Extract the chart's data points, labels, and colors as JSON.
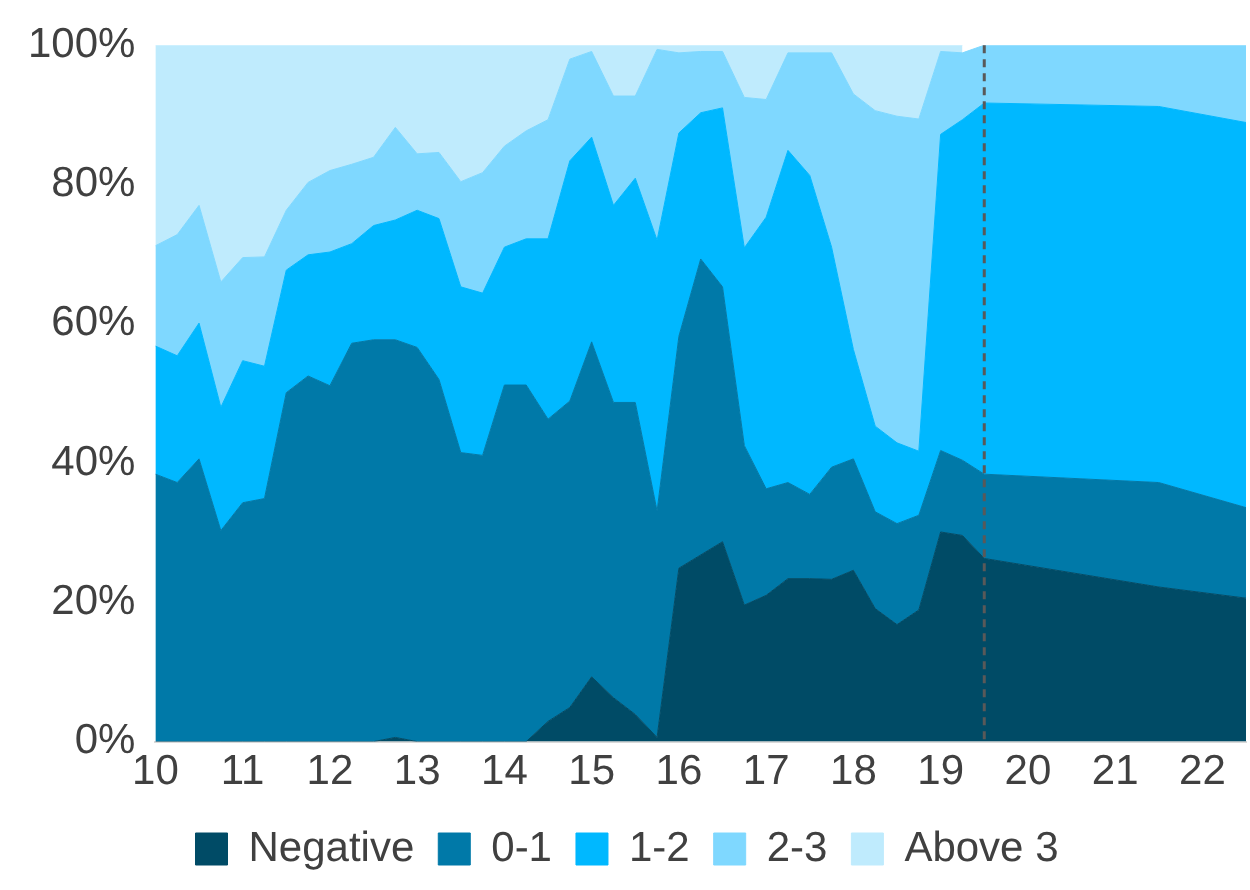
{
  "chart_data": {
    "type": "area",
    "stacked": true,
    "x": [
      10,
      10.25,
      10.5,
      10.75,
      11,
      11.25,
      11.5,
      11.75,
      12,
      12.25,
      12.5,
      12.75,
      13,
      13.25,
      13.5,
      13.75,
      14,
      14.25,
      14.5,
      14.75,
      15,
      15.25,
      15.5,
      15.75,
      16,
      16.25,
      16.5,
      16.75,
      17,
      17.25,
      17.5,
      17.75,
      18,
      18.25,
      18.5,
      18.75,
      19,
      19.25,
      19.5,
      21.5,
      22.5
    ],
    "series": [
      {
        "name": "Negative",
        "color": "#004b66",
        "values": [
          0,
          0,
          0,
          0,
          0,
          0,
          0,
          0,
          0,
          0,
          0,
          0.6,
          0,
          0,
          0,
          0,
          0,
          0,
          2.9,
          4.9,
          9.3,
          6.3,
          3.9,
          0.6,
          24.9,
          26.8,
          28.7,
          19.6,
          21,
          23.4,
          23.4,
          23.3,
          24.6,
          19.1,
          16.8,
          18.9,
          30.1,
          29.6,
          26.3,
          22.2,
          20.6
        ]
      },
      {
        "name": "0-1",
        "color": "#0079a8",
        "values": [
          38.4,
          37.2,
          40.6,
          30.3,
          34.3,
          34.9,
          50.1,
          52.5,
          51.1,
          57.2,
          57.7,
          57.1,
          56.6,
          52,
          41.5,
          41.1,
          51.2,
          51.2,
          43.4,
          44,
          48.1,
          42.4,
          44.8,
          32.5,
          33.3,
          42.5,
          36.6,
          22.9,
          15.3,
          13.8,
          12.1,
          16.1,
          16,
          13.9,
          14.5,
          13.6,
          11.7,
          10.8,
          12.1,
          15,
          13
        ]
      },
      {
        "name": "1-2",
        "color": "#00b8ff",
        "values": [
          18.4,
          18.2,
          19.5,
          17.7,
          20.4,
          19,
          17.6,
          17.4,
          19.2,
          14.3,
          16.4,
          17.2,
          19.7,
          23.1,
          23.8,
          23.3,
          19.8,
          21,
          25.9,
          34.5,
          29.4,
          28.3,
          32.2,
          38.9,
          29.2,
          21,
          25.7,
          28.4,
          39,
          47.7,
          45.8,
          31.6,
          15.7,
          12.3,
          11.6,
          9.2,
          45.4,
          48.9,
          53.3,
          54,
          55.3
        ]
      },
      {
        "name": "2-3",
        "color": "#7fd8ff",
        "values": [
          14.4,
          17.4,
          16.9,
          18,
          14.8,
          15.7,
          8.6,
          10.4,
          11.7,
          11.4,
          9.8,
          13.3,
          8.1,
          9.5,
          15.1,
          17.3,
          14.5,
          15.5,
          17.1,
          14.6,
          12.3,
          15.7,
          11.8,
          27.4,
          11.5,
          8.8,
          8.1,
          21.6,
          16.9,
          14,
          17.6,
          27.9,
          36.7,
          45.3,
          46.9,
          47.7,
          11.9,
          9.6,
          8.3,
          8.8,
          11.1
        ]
      },
      {
        "name": "Above 3",
        "color": "#bfebfd",
        "values": [
          28.8,
          27.2,
          23,
          34,
          30.5,
          30.4,
          23.7,
          19.7,
          18,
          17.1,
          16.1,
          11.8,
          15.6,
          15.4,
          19.6,
          18.3,
          14.5,
          12.3,
          10.7,
          2,
          0.9,
          7.3,
          7.3,
          0.6,
          1.1,
          0.9,
          0.9,
          7.5,
          7.8,
          1.1,
          1.1,
          1.1,
          7,
          9.4,
          10.2,
          10.6,
          0.9,
          1.1,
          null,
          null,
          null
        ]
      }
    ],
    "xlim": [
      10,
      22.5
    ],
    "xticks": [
      10,
      11,
      12,
      13,
      14,
      15,
      16,
      17,
      18,
      19,
      20,
      21,
      22
    ],
    "ylim": [
      0,
      100
    ],
    "yticks": [
      {
        "value": 0,
        "label": "0%"
      },
      {
        "value": 20,
        "label": "20%"
      },
      {
        "value": 40,
        "label": "40%"
      },
      {
        "value": 60,
        "label": "60%"
      },
      {
        "value": 80,
        "label": "80%"
      },
      {
        "value": 100,
        "label": "100%"
      }
    ],
    "ref_lines": [
      {
        "axis": "x",
        "value": 19.5,
        "color": "#595959",
        "line_style": "dashed"
      }
    ],
    "grid": false,
    "legend": "bottom"
  }
}
